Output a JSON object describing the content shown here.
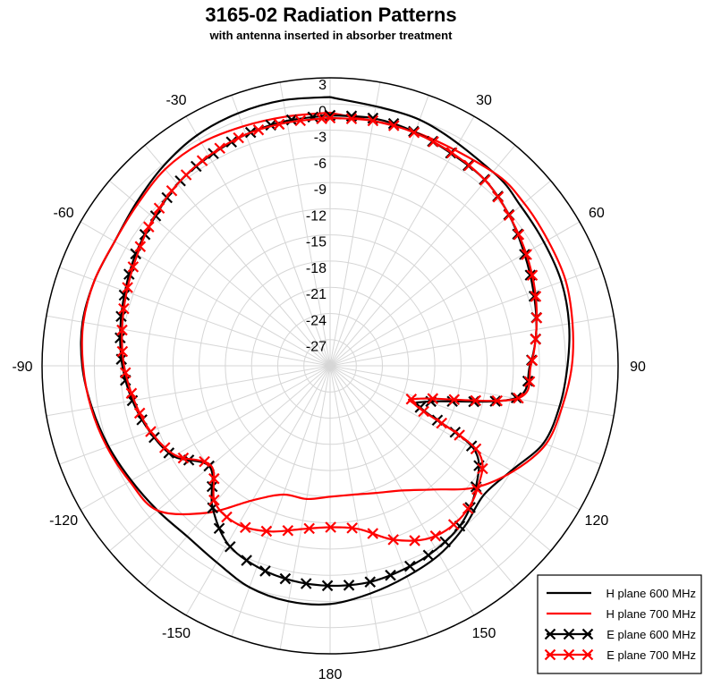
{
  "chart_data": {
    "type": "polar-line",
    "title": "3165-02 Radiation Patterns",
    "subtitle": "with antenna inserted in absorber treatment",
    "radial_axis": {
      "min": -30,
      "max": 3,
      "tick_labels": [
        "3",
        "0",
        "-3",
        "-6",
        "-9",
        "-12",
        "-15",
        "-18",
        "-21",
        "-24",
        "-27"
      ],
      "tick_values": [
        3,
        0,
        -3,
        -6,
        -9,
        -12,
        -15,
        -18,
        -21,
        -24,
        -27
      ]
    },
    "angular_axis": {
      "direction": "clockwise",
      "zero_location": "top",
      "tick_values": [
        0,
        30,
        60,
        90,
        120,
        150,
        180,
        -150,
        -120,
        -90,
        -60,
        -30
      ],
      "tick_labels": [
        "30",
        "60",
        "90",
        "120",
        "150",
        "180",
        "-150",
        "-120",
        "-90",
        "-60",
        "-30"
      ],
      "tick_label_angles": [
        30,
        60,
        90,
        120,
        150,
        180,
        -150,
        -120,
        -90,
        -60,
        -30
      ],
      "minor_spoke_step": 10
    },
    "grid": true,
    "legend_location": "bottom-right",
    "series": [
      {
        "name": "H plane 600 MHz",
        "color": "#000000",
        "marker": "none",
        "points": [
          [
            0,
            0.8
          ],
          [
            20,
            0
          ],
          [
            40,
            -1
          ],
          [
            50,
            -1.5
          ],
          [
            60,
            -1.7
          ],
          [
            70,
            -1.8
          ],
          [
            80,
            -2.2
          ],
          [
            90,
            -2.8
          ],
          [
            100,
            -3.3
          ],
          [
            110,
            -4
          ],
          [
            120,
            -6
          ],
          [
            130,
            -7
          ],
          [
            140,
            -6
          ],
          [
            150,
            -5
          ],
          [
            160,
            -4.3
          ],
          [
            170,
            -3.5
          ],
          [
            180,
            -2.7
          ],
          [
            190,
            -2.6
          ],
          [
            200,
            -3
          ],
          [
            210,
            -4
          ],
          [
            220,
            -4.5
          ],
          [
            230,
            -4.2
          ],
          [
            240,
            -3.7
          ],
          [
            250,
            -3
          ],
          [
            260,
            -2.3
          ],
          [
            270,
            -1.6
          ],
          [
            280,
            -1.2
          ],
          [
            290,
            -1.3
          ],
          [
            300,
            -1.5
          ],
          [
            310,
            -1
          ],
          [
            320,
            -0.2
          ],
          [
            330,
            0.5
          ],
          [
            340,
            0.8
          ],
          [
            350,
            0.9
          ],
          [
            360,
            0.8
          ]
        ]
      },
      {
        "name": "H plane 700 MHz",
        "color": "#ff0000",
        "marker": "none",
        "points": [
          [
            0,
            -1
          ],
          [
            20,
            -1.5
          ],
          [
            40,
            -1
          ],
          [
            50,
            -1
          ],
          [
            60,
            -1.2
          ],
          [
            70,
            -1.3
          ],
          [
            80,
            -1.8
          ],
          [
            90,
            -2.3
          ],
          [
            100,
            -3
          ],
          [
            110,
            -3.7
          ],
          [
            120,
            -5.8
          ],
          [
            130,
            -8.3
          ],
          [
            140,
            -11.5
          ],
          [
            150,
            -13.5
          ],
          [
            160,
            -14.5
          ],
          [
            170,
            -15
          ],
          [
            180,
            -15
          ],
          [
            190,
            -14.5
          ],
          [
            200,
            -14.3
          ],
          [
            210,
            -12.2
          ],
          [
            220,
            -8
          ],
          [
            230,
            -4.2
          ],
          [
            240,
            -3.5
          ],
          [
            250,
            -2.8
          ],
          [
            260,
            -2.2
          ],
          [
            270,
            -1.7
          ],
          [
            280,
            -1.3
          ],
          [
            290,
            -1.3
          ],
          [
            300,
            -1.5
          ],
          [
            310,
            -1.2
          ],
          [
            320,
            -0.6
          ],
          [
            330,
            -0.5
          ],
          [
            340,
            -0.8
          ],
          [
            350,
            -1
          ],
          [
            360,
            -1
          ]
        ]
      },
      {
        "name": "E plane 600 MHz",
        "color": "#000000",
        "marker": "x",
        "points": [
          [
            0,
            -1.3
          ],
          [
            10,
            -1.2
          ],
          [
            20,
            -1.5
          ],
          [
            30,
            -2
          ],
          [
            40,
            -2.3
          ],
          [
            50,
            -3.2
          ],
          [
            60,
            -4.3
          ],
          [
            70,
            -5.2
          ],
          [
            80,
            -6
          ],
          [
            90,
            -7.1
          ],
          [
            100,
            -8.5
          ],
          [
            110,
            -18
          ],
          [
            115,
            -18.5
          ],
          [
            120,
            -11
          ],
          [
            130,
            -8.2
          ],
          [
            140,
            -6.5
          ],
          [
            150,
            -5.7
          ],
          [
            160,
            -5.2
          ],
          [
            170,
            -4.8
          ],
          [
            180,
            -4.8
          ],
          [
            190,
            -5
          ],
          [
            200,
            -5.5
          ],
          [
            210,
            -6.5
          ],
          [
            220,
            -9
          ],
          [
            230,
            -12
          ],
          [
            240,
            -9.3
          ],
          [
            250,
            -8
          ],
          [
            260,
            -7
          ],
          [
            270,
            -6.2
          ],
          [
            280,
            -5.6
          ],
          [
            290,
            -5
          ],
          [
            300,
            -4.3
          ],
          [
            310,
            -3.7
          ],
          [
            320,
            -2.8
          ],
          [
            330,
            -2.3
          ],
          [
            340,
            -1.8
          ],
          [
            350,
            -1.5
          ],
          [
            360,
            -1.3
          ]
        ]
      },
      {
        "name": "E plane 700 MHz",
        "color": "#ff0000",
        "marker": "x",
        "points": [
          [
            0,
            -1.6
          ],
          [
            10,
            -1.5
          ],
          [
            20,
            -1.6
          ],
          [
            30,
            -1.9
          ],
          [
            40,
            -2.3
          ],
          [
            50,
            -3.2
          ],
          [
            60,
            -4.1
          ],
          [
            70,
            -5
          ],
          [
            80,
            -6
          ],
          [
            90,
            -7
          ],
          [
            100,
            -8.3
          ],
          [
            110,
            -19
          ],
          [
            115,
            -19
          ],
          [
            120,
            -10.5
          ],
          [
            130,
            -8
          ],
          [
            140,
            -7
          ],
          [
            150,
            -7.2
          ],
          [
            160,
            -8.8
          ],
          [
            170,
            -11
          ],
          [
            180,
            -11.5
          ],
          [
            190,
            -11
          ],
          [
            200,
            -9.8
          ],
          [
            210,
            -9
          ],
          [
            220,
            -9.5
          ],
          [
            230,
            -12.2
          ],
          [
            240,
            -9.5
          ],
          [
            250,
            -8.1
          ],
          [
            260,
            -7.2
          ],
          [
            270,
            -6.4
          ],
          [
            280,
            -5.8
          ],
          [
            290,
            -5.2
          ],
          [
            300,
            -4.5
          ],
          [
            310,
            -3.6
          ],
          [
            320,
            -2.8
          ],
          [
            330,
            -2.2
          ],
          [
            340,
            -1.8
          ],
          [
            350,
            -1.7
          ],
          [
            360,
            -1.6
          ]
        ]
      }
    ]
  }
}
